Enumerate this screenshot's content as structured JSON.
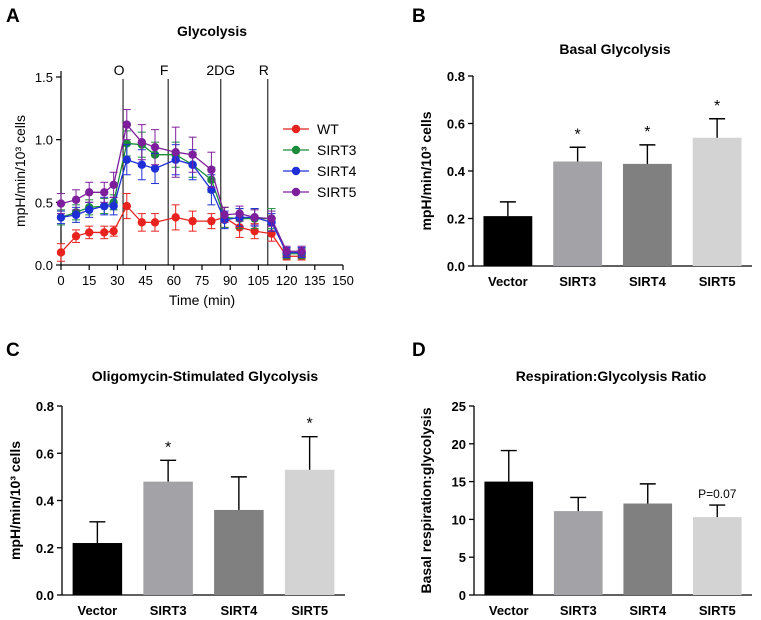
{
  "panels": {
    "A": "A",
    "B": "B",
    "C": "C",
    "D": "D"
  },
  "chart_data": [
    {
      "id": "A",
      "type": "line",
      "title": "Glycolysis",
      "xlabel": "Time (min)",
      "ylabel": "mpH/min/10³ cells",
      "xlim": [
        0,
        150
      ],
      "ylim": [
        0,
        1.5
      ],
      "xticks": [
        0,
        15,
        30,
        45,
        60,
        75,
        90,
        105,
        120,
        135,
        150
      ],
      "yticks": [
        0.0,
        0.5,
        1.0,
        1.5
      ],
      "grid": false,
      "legend_position": "right",
      "injections": [
        {
          "label": "O",
          "x": 33
        },
        {
          "label": "F",
          "x": 57
        },
        {
          "label": "2DG",
          "x": 85
        },
        {
          "label": "R",
          "x": 110
        }
      ],
      "series": [
        {
          "name": "WT",
          "color": "#e8221f",
          "x": [
            0,
            8,
            15,
            23,
            28,
            35,
            43,
            50,
            61,
            70,
            80,
            87,
            95,
            103,
            112,
            120,
            128
          ],
          "y": [
            0.1,
            0.23,
            0.26,
            0.26,
            0.27,
            0.47,
            0.34,
            0.34,
            0.38,
            0.35,
            0.35,
            0.38,
            0.3,
            0.27,
            0.25,
            0.07,
            0.07
          ],
          "err": [
            0.07,
            0.05,
            0.05,
            0.05,
            0.04,
            0.1,
            0.07,
            0.07,
            0.1,
            0.08,
            0.06,
            0.08,
            0.08,
            0.06,
            0.06,
            0.03,
            0.03
          ]
        },
        {
          "name": "SIRT3",
          "color": "#1a8c3a",
          "x": [
            0,
            8,
            15,
            23,
            28,
            35,
            43,
            50,
            61,
            70,
            80,
            87,
            95,
            103,
            112,
            120,
            128
          ],
          "y": [
            0.38,
            0.42,
            0.46,
            0.47,
            0.5,
            0.97,
            0.96,
            0.88,
            0.88,
            0.8,
            0.68,
            0.38,
            0.37,
            0.37,
            0.37,
            0.09,
            0.09
          ],
          "err": [
            0.06,
            0.06,
            0.06,
            0.06,
            0.06,
            0.1,
            0.1,
            0.1,
            0.1,
            0.1,
            0.1,
            0.08,
            0.08,
            0.08,
            0.08,
            0.04,
            0.04
          ]
        },
        {
          "name": "SIRT4",
          "color": "#1e2fd6",
          "x": [
            0,
            8,
            15,
            23,
            28,
            35,
            43,
            50,
            61,
            70,
            80,
            87,
            95,
            103,
            112,
            120,
            128
          ],
          "y": [
            0.38,
            0.4,
            0.44,
            0.47,
            0.47,
            0.84,
            0.8,
            0.77,
            0.84,
            0.8,
            0.6,
            0.36,
            0.38,
            0.38,
            0.34,
            0.1,
            0.1
          ],
          "err": [
            0.05,
            0.06,
            0.06,
            0.07,
            0.07,
            0.12,
            0.12,
            0.12,
            0.12,
            0.12,
            0.12,
            0.07,
            0.07,
            0.07,
            0.07,
            0.04,
            0.04
          ]
        },
        {
          "name": "SIRT5",
          "color": "#7d1f9c",
          "x": [
            0,
            8,
            15,
            23,
            28,
            35,
            43,
            50,
            61,
            70,
            80,
            87,
            95,
            103,
            112,
            120,
            128
          ],
          "y": [
            0.49,
            0.52,
            0.58,
            0.58,
            0.64,
            1.12,
            0.98,
            0.94,
            0.9,
            0.88,
            0.76,
            0.4,
            0.41,
            0.38,
            0.37,
            0.11,
            0.11
          ],
          "err": [
            0.08,
            0.08,
            0.08,
            0.08,
            0.1,
            0.12,
            0.14,
            0.14,
            0.2,
            0.14,
            0.14,
            0.06,
            0.06,
            0.06,
            0.06,
            0.04,
            0.04
          ]
        }
      ]
    },
    {
      "id": "B",
      "type": "bar",
      "title": "Basal Glycolysis",
      "xlabel": "",
      "ylabel": "mpH/min/10³ cells",
      "ylim": [
        0,
        0.8
      ],
      "yticks": [
        0.0,
        0.2,
        0.4,
        0.6,
        0.8
      ],
      "grid": false,
      "categories": [
        "Vector",
        "SIRT3",
        "SIRT4",
        "SIRT5"
      ],
      "values": [
        0.21,
        0.44,
        0.43,
        0.54
      ],
      "errors": [
        0.06,
        0.06,
        0.08,
        0.08
      ],
      "colors": [
        "#000000",
        "#a3a3a7",
        "#808080",
        "#d3d3d3"
      ],
      "annotations": [
        "",
        "*",
        "*",
        "*"
      ]
    },
    {
      "id": "C",
      "type": "bar",
      "title": "Oligomycin-Stimulated Glycolysis",
      "xlabel": "",
      "ylabel": "mpH/min/10³ cells",
      "ylim": [
        0,
        0.8
      ],
      "yticks": [
        0.0,
        0.2,
        0.4,
        0.6,
        0.8
      ],
      "grid": false,
      "categories": [
        "Vector",
        "SIRT3",
        "SIRT4",
        "SIRT5"
      ],
      "values": [
        0.22,
        0.48,
        0.36,
        0.53
      ],
      "errors": [
        0.09,
        0.09,
        0.14,
        0.14
      ],
      "colors": [
        "#000000",
        "#a3a3a7",
        "#808080",
        "#d3d3d3"
      ],
      "annotations": [
        "",
        "*",
        "",
        "*"
      ]
    },
    {
      "id": "D",
      "type": "bar",
      "title": "Respiration:Glycolysis Ratio",
      "xlabel": "",
      "ylabel": "Basal respiration:glycolysis",
      "ylim": [
        0,
        25
      ],
      "yticks": [
        0,
        5,
        10,
        15,
        20,
        25
      ],
      "grid": false,
      "categories": [
        "Vector",
        "SIRT3",
        "SIRT4",
        "SIRT5"
      ],
      "values": [
        15.0,
        11.1,
        12.1,
        10.3
      ],
      "errors": [
        4.1,
        1.8,
        2.6,
        1.6
      ],
      "colors": [
        "#000000",
        "#a3a3a7",
        "#808080",
        "#d3d3d3"
      ],
      "annotations": [
        "",
        "",
        "",
        "P=0.07"
      ]
    }
  ]
}
